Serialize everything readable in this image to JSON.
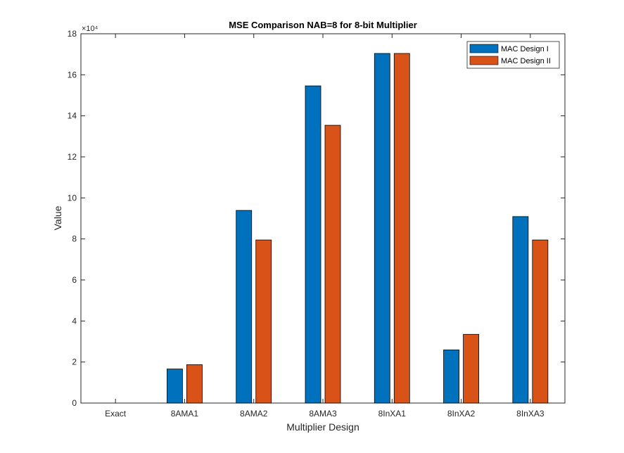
{
  "chart_data": {
    "type": "bar",
    "title": "MSE Comparison NAB=8 for 8-bit Multiplier",
    "xlabel": "Multiplier Design",
    "ylabel": "Value",
    "exponent_label": "×10⁴",
    "categories": [
      "Exact",
      "8AMA1",
      "8AMA2",
      "8AMA3",
      "8InXA1",
      "8InXA2",
      "8InXA3"
    ],
    "series": [
      {
        "name": "MAC Design I",
        "color": "#0072BD",
        "values": [
          0,
          16600,
          93900,
          154600,
          170400,
          25900,
          90900
        ]
      },
      {
        "name": "MAC Design II",
        "color": "#D95319",
        "values": [
          0,
          18700,
          79500,
          135400,
          170400,
          33500,
          79500
        ]
      }
    ],
    "ylim": [
      0,
      180000
    ],
    "yticks": [
      0,
      20000,
      40000,
      60000,
      80000,
      100000,
      120000,
      140000,
      160000,
      180000
    ],
    "ytick_labels": [
      "0",
      "2",
      "4",
      "6",
      "8",
      "10",
      "12",
      "14",
      "16",
      "18"
    ],
    "grid": false,
    "legend_position": "top-right"
  }
}
